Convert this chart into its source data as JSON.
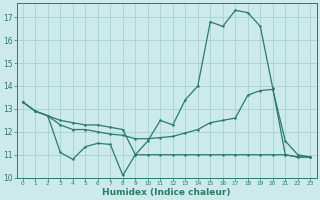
{
  "title": "",
  "xlabel": "Humidex (Indice chaleur)",
  "x": [
    0,
    1,
    2,
    3,
    4,
    5,
    6,
    7,
    8,
    9,
    10,
    11,
    12,
    13,
    14,
    15,
    16,
    17,
    18,
    19,
    20,
    21,
    22,
    23
  ],
  "line1": [
    13.3,
    12.9,
    12.7,
    11.1,
    10.8,
    11.35,
    11.5,
    11.45,
    10.1,
    11.0,
    11.6,
    12.5,
    12.3,
    13.4,
    14.0,
    16.8,
    16.6,
    17.3,
    17.2,
    16.6,
    13.9,
    11.0,
    10.9,
    10.9
  ],
  "line2": [
    13.3,
    12.9,
    12.7,
    12.5,
    12.4,
    12.3,
    12.3,
    12.2,
    12.1,
    11.0,
    11.0,
    11.0,
    11.0,
    11.0,
    11.0,
    11.0,
    11.0,
    11.0,
    11.0,
    11.0,
    11.0,
    11.0,
    10.9,
    10.9
  ],
  "line3": [
    13.3,
    12.9,
    12.7,
    12.3,
    12.1,
    12.1,
    12.0,
    11.9,
    11.85,
    11.7,
    11.7,
    11.75,
    11.8,
    11.95,
    12.1,
    12.4,
    12.5,
    12.6,
    13.6,
    13.8,
    13.85,
    11.6,
    11.0,
    10.9
  ],
  "line_color": "#2a7a6e",
  "bg_color": "#cceaea",
  "grid_color": "#9fcece",
  "ylim": [
    10,
    17.6
  ],
  "xlim": [
    -0.5,
    23.5
  ],
  "yticks": [
    10,
    11,
    12,
    13,
    14,
    15,
    16,
    17
  ],
  "xticks": [
    0,
    1,
    2,
    3,
    4,
    5,
    6,
    7,
    8,
    9,
    10,
    11,
    12,
    13,
    14,
    15,
    16,
    17,
    18,
    19,
    20,
    21,
    22,
    23
  ],
  "lw": 0.9,
  "ms": 1.8,
  "xlabel_fontsize": 6.5,
  "xtick_fontsize": 4.2,
  "ytick_fontsize": 5.5
}
